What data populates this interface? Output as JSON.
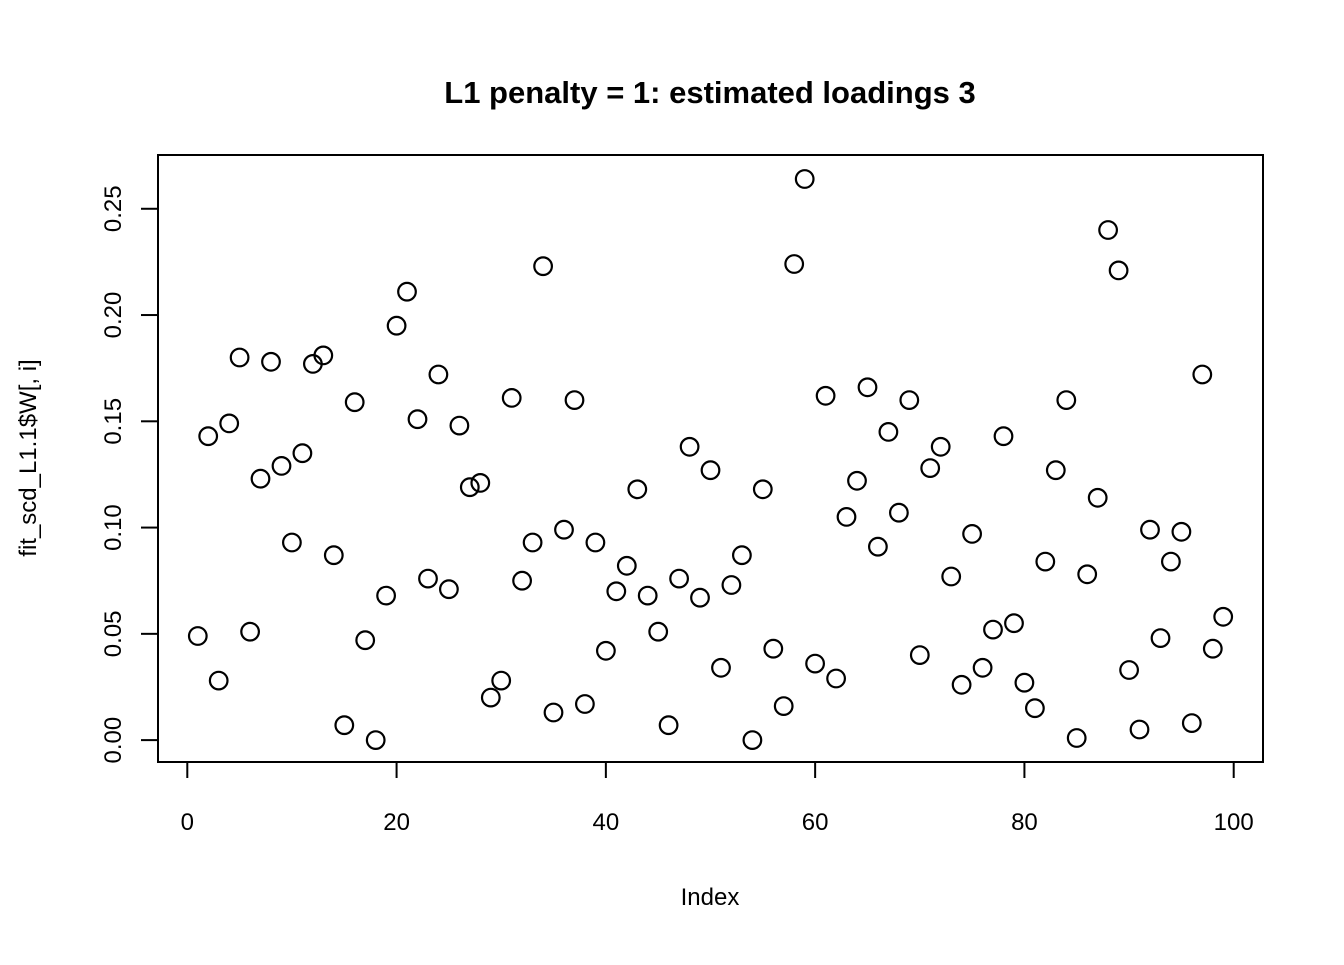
{
  "figure": {
    "background": "#ffffff",
    "foreground": "#000000"
  },
  "chart_data": {
    "type": "scatter",
    "title": "L1 penalty = 1: estimated loadings 3",
    "xlabel": "Index",
    "ylabel": "fit_scd_L1.1$W[, i]",
    "marker": "open-circle",
    "marker_color": "#000000",
    "grid": false,
    "legend": null,
    "xlim": [
      -2.8,
      102.8
    ],
    "ylim": [
      -0.0103,
      0.2753
    ],
    "x_ticks": {
      "values": [
        0,
        20,
        40,
        60,
        80,
        100
      ],
      "labels": [
        "0",
        "20",
        "40",
        "60",
        "80",
        "100"
      ]
    },
    "y_ticks": {
      "values": [
        0,
        0.05,
        0.1,
        0.15,
        0.2,
        0.25
      ],
      "labels": [
        "0.00",
        "0.05",
        "0.10",
        "0.15",
        "0.20",
        "0.25"
      ]
    },
    "points": [
      [
        1,
        0.049
      ],
      [
        2,
        0.143
      ],
      [
        3,
        0.028
      ],
      [
        4,
        0.149
      ],
      [
        5,
        0.18
      ],
      [
        6,
        0.051
      ],
      [
        7,
        0.123
      ],
      [
        8,
        0.178
      ],
      [
        9,
        0.129
      ],
      [
        10,
        0.093
      ],
      [
        11,
        0.135
      ],
      [
        12,
        0.177
      ],
      [
        13,
        0.181
      ],
      [
        14,
        0.087
      ],
      [
        15,
        0.007
      ],
      [
        16,
        0.159
      ],
      [
        17,
        0.047
      ],
      [
        18,
        0.0
      ],
      [
        19,
        0.068
      ],
      [
        20,
        0.195
      ],
      [
        21,
        0.211
      ],
      [
        22,
        0.151
      ],
      [
        23,
        0.076
      ],
      [
        24,
        0.172
      ],
      [
        25,
        0.071
      ],
      [
        26,
        0.148
      ],
      [
        27,
        0.119
      ],
      [
        28,
        0.121
      ],
      [
        29,
        0.02
      ],
      [
        30,
        0.028
      ],
      [
        31,
        0.161
      ],
      [
        32,
        0.075
      ],
      [
        33,
        0.093
      ],
      [
        34,
        0.223
      ],
      [
        35,
        0.013
      ],
      [
        36,
        0.099
      ],
      [
        37,
        0.16
      ],
      [
        38,
        0.017
      ],
      [
        39,
        0.093
      ],
      [
        40,
        0.042
      ],
      [
        41,
        0.07
      ],
      [
        42,
        0.082
      ],
      [
        43,
        0.118
      ],
      [
        44,
        0.068
      ],
      [
        45,
        0.051
      ],
      [
        46,
        0.007
      ],
      [
        47,
        0.076
      ],
      [
        48,
        0.138
      ],
      [
        49,
        0.067
      ],
      [
        50,
        0.127
      ],
      [
        51,
        0.034
      ],
      [
        52,
        0.073
      ],
      [
        53,
        0.087
      ],
      [
        54,
        0.0
      ],
      [
        55,
        0.118
      ],
      [
        56,
        0.043
      ],
      [
        57,
        0.016
      ],
      [
        58,
        0.224
      ],
      [
        59,
        0.264
      ],
      [
        60,
        0.036
      ],
      [
        61,
        0.162
      ],
      [
        62,
        0.029
      ],
      [
        63,
        0.105
      ],
      [
        64,
        0.122
      ],
      [
        65,
        0.166
      ],
      [
        66,
        0.091
      ],
      [
        67,
        0.145
      ],
      [
        68,
        0.107
      ],
      [
        69,
        0.16
      ],
      [
        70,
        0.04
      ],
      [
        71,
        0.128
      ],
      [
        72,
        0.138
      ],
      [
        73,
        0.077
      ],
      [
        74,
        0.026
      ],
      [
        75,
        0.097
      ],
      [
        76,
        0.034
      ],
      [
        77,
        0.052
      ],
      [
        78,
        0.143
      ],
      [
        79,
        0.055
      ],
      [
        80,
        0.027
      ],
      [
        81,
        0.015
      ],
      [
        82,
        0.084
      ],
      [
        83,
        0.127
      ],
      [
        84,
        0.16
      ],
      [
        85,
        0.001
      ],
      [
        86,
        0.078
      ],
      [
        87,
        0.114
      ],
      [
        88,
        0.24
      ],
      [
        89,
        0.221
      ],
      [
        90,
        0.033
      ],
      [
        91,
        0.005
      ],
      [
        92,
        0.099
      ],
      [
        93,
        0.048
      ],
      [
        94,
        0.084
      ],
      [
        95,
        0.098
      ],
      [
        96,
        0.008
      ],
      [
        97,
        0.172
      ],
      [
        98,
        0.043
      ],
      [
        99,
        0.058
      ]
    ]
  }
}
